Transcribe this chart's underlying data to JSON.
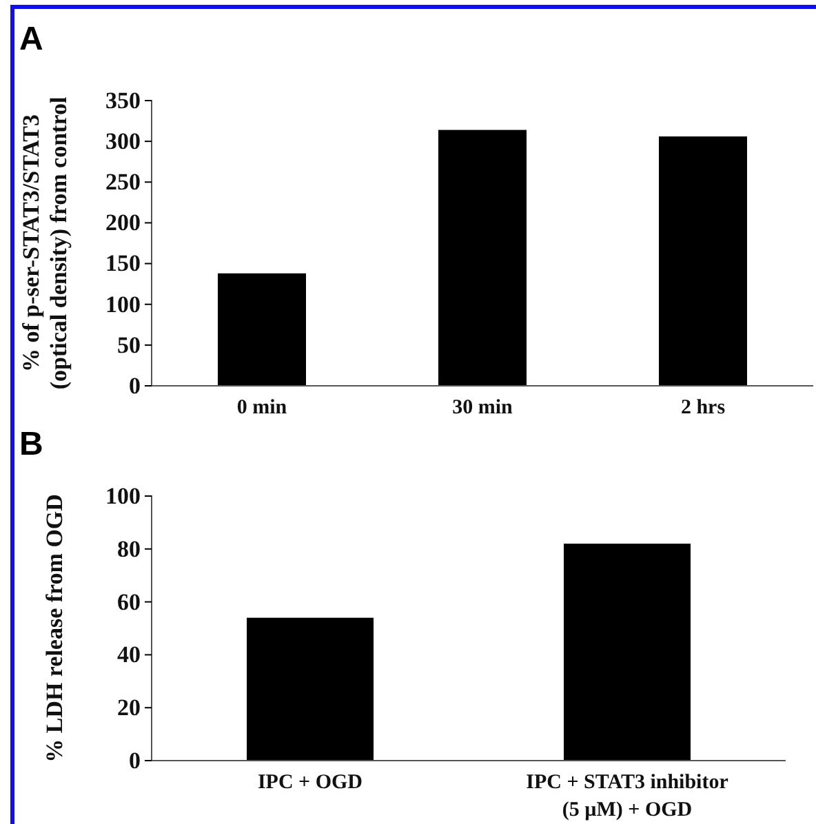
{
  "chart_data": [
    {
      "type": "bar",
      "title": "A",
      "ylabel": "% of p-ser-STAT3/STAT3\n(optical density) from control",
      "categories": [
        "0 min",
        "30 min",
        "2 hrs"
      ],
      "values": [
        138,
        314,
        306
      ],
      "color": "#000000",
      "ylim": [
        0,
        350
      ],
      "yticks": [
        0,
        50,
        100,
        150,
        200,
        250,
        300,
        350
      ],
      "grid": false
    },
    {
      "type": "bar",
      "title": "B",
      "ylabel": "% LDH release from OGD",
      "categories": [
        "IPC + OGD",
        "IPC + STAT3 inhibitor\n(5 µM) + OGD"
      ],
      "values": [
        54,
        82
      ],
      "color": "#000000",
      "ylim": [
        0,
        100
      ],
      "yticks": [
        0,
        20,
        40,
        60,
        80,
        100
      ],
      "grid": false
    }
  ]
}
